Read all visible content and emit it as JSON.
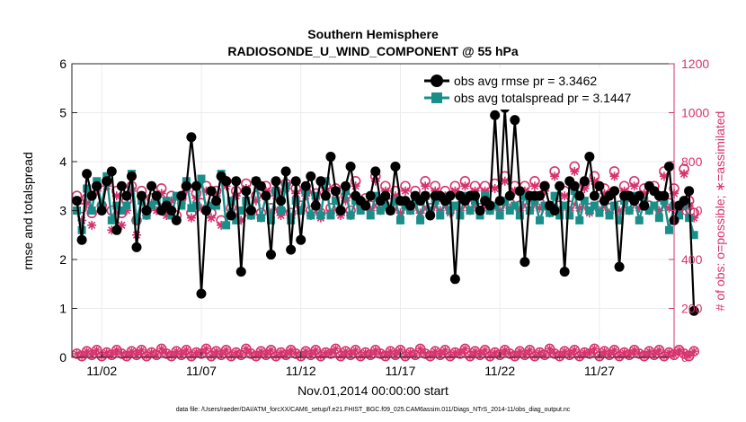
{
  "chart_data": {
    "type": "line",
    "title": "Southern Hemisphere",
    "subtitle": "RADIOSONDE_U_WIND_COMPONENT @ 55 hPa",
    "xlabel": "Nov.01,2014 00:00:00 start",
    "ylabel": "rmse and totalspread",
    "y2label": "# of obs: o=possible; ∗=assimilated",
    "footer": "data file: /Users/raeder/DAI/ATM_forcXX/CAM6_setup/f.e21.FHIST_BGC.f09_025.CAM6assim.011/Diags_NTrS_2014-11/obs_diag_output.nc",
    "xlim": [
      0.5,
      30.75
    ],
    "ylim": [
      0,
      6
    ],
    "y2lim": [
      0,
      1200
    ],
    "x_ticks": [
      2,
      7,
      12,
      17,
      22,
      27
    ],
    "x_tick_labels": [
      "11/02",
      "11/07",
      "11/12",
      "11/17",
      "11/22",
      "11/27"
    ],
    "y_ticks": [
      0,
      1,
      2,
      3,
      4,
      5,
      6
    ],
    "y2_ticks": [
      0,
      200,
      400,
      600,
      800,
      1000,
      1200
    ],
    "x_step_days": 0.25,
    "x_start_day": 0.75,
    "colors": {
      "rmse": "#000000",
      "spread": "#1a8f8a",
      "count": "#d6336c",
      "grid": "#ececec"
    },
    "series": [
      {
        "name": "obs avg rmse",
        "legend": "obs avg rmse pr = 3.3462",
        "axis": "left",
        "values": [
          3.2,
          2.4,
          3.75,
          3.3,
          3.5,
          3.0,
          3.6,
          3.8,
          2.6,
          3.5,
          3.3,
          3.7,
          2.25,
          3.3,
          3.0,
          3.5,
          3.3,
          3.0,
          3.1,
          3.0,
          2.8,
          3.3,
          3.5,
          4.5,
          3.5,
          1.3,
          3.0,
          3.4,
          3.2,
          3.7,
          3.6,
          2.9,
          3.6,
          1.75,
          3.4,
          3.0,
          3.6,
          3.5,
          3.3,
          2.1,
          3.6,
          3.2,
          3.8,
          2.2,
          3.6,
          2.4,
          3.5,
          3.7,
          3.1,
          3.6,
          3.3,
          4.1,
          3.4,
          3.0,
          3.5,
          3.9,
          3.3,
          3.2,
          3.1,
          3.3,
          3.8,
          3.2,
          3.3,
          3.0,
          3.9,
          3.2,
          3.2,
          3.1,
          3.3,
          3.2,
          3.3,
          2.9,
          3.3,
          3.3,
          3.2,
          3.3,
          1.6,
          3.3,
          3.2,
          3.3,
          3.3,
          3.0,
          3.2,
          3.1,
          4.95,
          3.2,
          5.1,
          3.3,
          4.85,
          3.4,
          1.95,
          3.3,
          3.3,
          3.3,
          3.5,
          3.1,
          3.0,
          3.5,
          1.75,
          3.6,
          3.5,
          3.3,
          3.6,
          4.1,
          3.3,
          3.5,
          3.2,
          3.3,
          3.4,
          1.85,
          3.3,
          3.3,
          3.2,
          3.3,
          3.1,
          3.5,
          3.4,
          3.3,
          3.3,
          3.9,
          2.8,
          3.1,
          3.2,
          3.4,
          0.95
        ]
      },
      {
        "name": "obs avg totalspread",
        "legend": "obs avg totalspread pr = 3.1447",
        "axis": "left",
        "values": [
          3.0,
          2.6,
          3.45,
          3.0,
          3.6,
          3.1,
          3.7,
          2.8,
          3.1,
          3.0,
          3.1,
          3.75,
          2.8,
          3.2,
          2.9,
          3.1,
          3.2,
          3.0,
          3.2,
          2.9,
          3.3,
          3.1,
          3.6,
          3.05,
          3.1,
          3.65,
          3.0,
          3.1,
          3.1,
          3.75,
          2.7,
          3.2,
          2.8,
          3.0,
          3.2,
          2.9,
          3.6,
          2.85,
          3.3,
          2.8,
          3.4,
          3.0,
          3.5,
          2.8,
          3.2,
          3.0,
          3.4,
          2.9,
          3.3,
          2.9,
          3.6,
          2.9,
          3.2,
          3.0,
          3.4,
          2.9,
          3.2,
          3.0,
          3.1,
          2.9,
          3.3,
          3.0,
          3.1,
          3.0,
          3.2,
          2.8,
          3.1,
          3.0,
          3.2,
          2.8,
          3.3,
          3.0,
          3.2,
          2.9,
          3.2,
          3.0,
          3.1,
          2.9,
          3.3,
          3.0,
          3.2,
          2.9,
          3.3,
          3.0,
          3.1,
          2.9,
          3.2,
          3.0,
          3.1,
          2.9,
          3.3,
          3.0,
          3.2,
          2.8,
          3.1,
          2.95,
          3.3,
          2.9,
          3.1,
          2.9,
          3.4,
          2.8,
          3.2,
          3.0,
          3.1,
          2.95,
          3.2,
          2.9,
          3.1,
          2.8,
          3.2,
          3.0,
          3.3,
          2.8,
          3.2,
          3.0,
          3.1,
          2.85,
          3.2,
          2.6,
          3.1,
          2.9,
          3.1,
          2.85,
          2.5
        ]
      },
      {
        "name": "# of obs possible",
        "marker": "o",
        "axis": "right",
        "values": [
          660,
          610,
          650,
          590,
          700,
          620,
          720,
          600,
          680,
          590,
          640,
          700,
          560,
          680,
          600,
          650,
          620,
          690,
          600,
          660,
          580,
          650,
          700,
          590,
          670,
          630,
          700,
          590,
          680,
          560,
          720,
          610,
          680,
          580,
          710,
          600,
          660,
          590,
          700,
          610,
          680,
          600,
          710,
          590,
          690,
          620,
          680,
          600,
          670,
          590,
          700,
          610,
          690,
          600,
          660,
          600,
          720,
          630,
          650,
          620,
          740,
          620,
          700,
          630,
          680,
          610,
          700,
          620,
          680,
          610,
          720,
          610,
          700,
          620,
          680,
          610,
          700,
          620,
          720,
          620,
          700,
          610,
          700,
          620,
          710,
          620,
          740,
          630,
          700,
          620,
          700,
          620,
          720,
          630,
          700,
          610,
          760,
          620,
          680,
          620,
          780,
          630,
          710,
          610,
          740,
          620,
          690,
          610,
          760,
          620,
          700,
          620,
          720,
          630,
          690,
          620,
          700,
          620,
          760,
          630,
          690,
          610,
          770,
          640,
          590
        ]
      },
      {
        "name": "# of obs assimilated",
        "marker": "*",
        "axis": "right",
        "values": [
          640,
          560,
          630,
          540,
          680,
          600,
          700,
          520,
          660,
          540,
          600,
          680,
          500,
          660,
          580,
          630,
          600,
          670,
          580,
          640,
          560,
          630,
          680,
          570,
          650,
          610,
          680,
          570,
          660,
          540,
          700,
          590,
          660,
          560,
          690,
          580,
          640,
          570,
          680,
          590,
          660,
          580,
          690,
          570,
          670,
          600,
          660,
          580,
          650,
          570,
          680,
          590,
          670,
          580,
          640,
          580,
          700,
          610,
          630,
          600,
          720,
          600,
          680,
          610,
          660,
          590,
          680,
          600,
          660,
          590,
          700,
          590,
          680,
          600,
          660,
          590,
          680,
          600,
          700,
          600,
          680,
          590,
          680,
          600,
          690,
          600,
          720,
          610,
          680,
          600,
          680,
          600,
          700,
          610,
          680,
          590,
          740,
          600,
          660,
          600,
          760,
          610,
          690,
          590,
          720,
          600,
          670,
          590,
          740,
          600,
          680,
          600,
          700,
          610,
          670,
          600,
          680,
          600,
          740,
          610,
          670,
          590,
          750,
          620,
          570
        ]
      },
      {
        "name": "# of obs possible (low)",
        "marker": "o",
        "axis": "right",
        "values": [
          15,
          5,
          25,
          10,
          30,
          5,
          20,
          10,
          30,
          15,
          5,
          25,
          10,
          30,
          5,
          20,
          10,
          35,
          15,
          5,
          25,
          10,
          30,
          5,
          20,
          15,
          35,
          5,
          25,
          10,
          30,
          5,
          20,
          10,
          35,
          15,
          5,
          25,
          10,
          30,
          5,
          20,
          10,
          30,
          15,
          5,
          25,
          10,
          30,
          5,
          20,
          15,
          35,
          5,
          25,
          10,
          30,
          5,
          20,
          10,
          30,
          15,
          5,
          25,
          10,
          30,
          5,
          20,
          10,
          35,
          15,
          5,
          25,
          10,
          30,
          5,
          20,
          15,
          35,
          5,
          25,
          10,
          30,
          5,
          20,
          10,
          30,
          15,
          5,
          25,
          10,
          30,
          5,
          20,
          10,
          35,
          15,
          5,
          25,
          10,
          30,
          5,
          20,
          15,
          35,
          5,
          25,
          10,
          30,
          5,
          20,
          10,
          30,
          15,
          5,
          25,
          10,
          30,
          5,
          20,
          10,
          30,
          15,
          5,
          25
        ]
      }
    ]
  }
}
